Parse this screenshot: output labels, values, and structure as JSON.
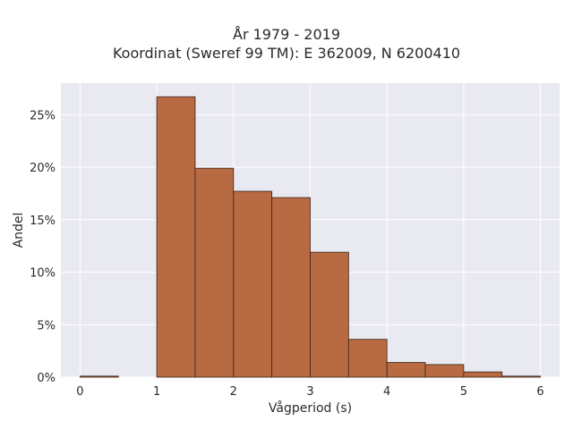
{
  "chart_data": {
    "type": "bar",
    "title": "År 1979 - 2019",
    "subtitle": "Koordinat (Sweref 99 TM): E 362009, N 6200410",
    "xlabel": "Vågperiod (s)",
    "ylabel": "Andel",
    "xlim": [
      -0.25,
      6.25
    ],
    "ylim": [
      0,
      0.28
    ],
    "x_ticks": [
      0,
      1,
      2,
      3,
      4,
      5,
      6
    ],
    "x_tick_labels": [
      "0",
      "1",
      "2",
      "3",
      "4",
      "5",
      "6"
    ],
    "y_ticks": [
      0,
      0.05,
      0.1,
      0.15,
      0.2,
      0.25
    ],
    "y_tick_labels": [
      "0%",
      "5%",
      "10%",
      "15%",
      "20%",
      "25%"
    ],
    "bin_width": 0.5,
    "bins": [
      {
        "start": 0.0,
        "end": 0.5,
        "value": 0.001
      },
      {
        "start": 0.5,
        "end": 1.0,
        "value": 0.0
      },
      {
        "start": 1.0,
        "end": 1.5,
        "value": 0.267
      },
      {
        "start": 1.5,
        "end": 2.0,
        "value": 0.199
      },
      {
        "start": 2.0,
        "end": 2.5,
        "value": 0.177
      },
      {
        "start": 2.5,
        "end": 3.0,
        "value": 0.171
      },
      {
        "start": 3.0,
        "end": 3.5,
        "value": 0.119
      },
      {
        "start": 3.5,
        "end": 4.0,
        "value": 0.036
      },
      {
        "start": 4.0,
        "end": 4.5,
        "value": 0.014
      },
      {
        "start": 4.5,
        "end": 5.0,
        "value": 0.012
      },
      {
        "start": 5.0,
        "end": 5.5,
        "value": 0.005
      },
      {
        "start": 5.5,
        "end": 6.0,
        "value": 0.001
      }
    ],
    "grid": true,
    "colors": {
      "bar_fill": "#b86a43",
      "bar_edge": "#3a2418",
      "plot_background": "#e9e9f1",
      "grid": "#ffffff"
    }
  }
}
